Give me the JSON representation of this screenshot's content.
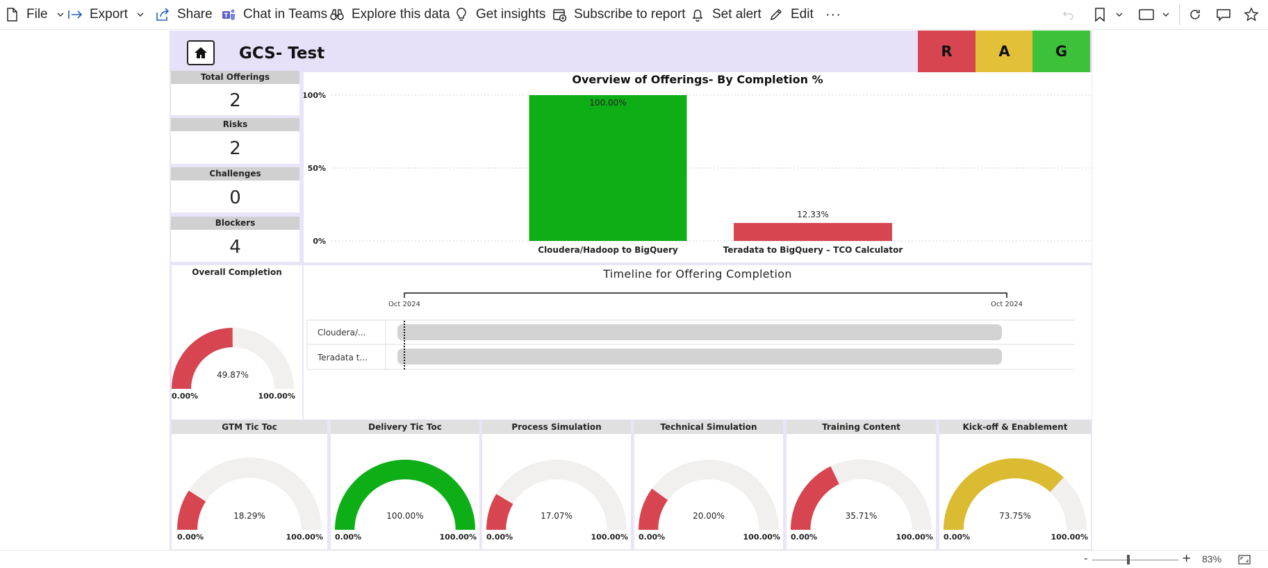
{
  "toolbar": {
    "file": "File",
    "export": "Export",
    "share": "Share",
    "chat": "Chat in Teams",
    "explore": "Explore this data",
    "insights": "Get insights",
    "subscribe": "Subscribe to report",
    "alert": "Set alert",
    "edit": "Edit",
    "more": "···"
  },
  "report": {
    "title": "GCS- Test",
    "rag": [
      "R",
      "A",
      "G"
    ],
    "rag_colors": [
      "#d64550",
      "#e2c038",
      "#3ec13a"
    ]
  },
  "kpis": [
    {
      "label": "Total Offerings",
      "value": "2"
    },
    {
      "label": "Risks",
      "value": "2"
    },
    {
      "label": "Challenges",
      "value": "0"
    },
    {
      "label": "Blockers",
      "value": "4"
    }
  ],
  "chart_data": [
    {
      "type": "bar",
      "title": "Overview of Offerings- By Completion %",
      "categories": [
        "Cloudera/Hadoop to BigQuery",
        "Teradata to BigQuery – TCO Calculator"
      ],
      "values": [
        100.0,
        12.33
      ],
      "data_labels": [
        "100.00%",
        "12.33%"
      ],
      "colors": [
        "#0eae17",
        "#d64550"
      ],
      "yticks": [
        "100%",
        "50%",
        "0%"
      ],
      "ylim": [
        0,
        100
      ],
      "grid": true
    }
  ],
  "timeline": {
    "title": "Timeline for Offering Completion",
    "start_label": "Oct 2024",
    "end_label": "Oct 2024",
    "rows": [
      "Cloudera/...",
      "Teradata t..."
    ]
  },
  "overall": {
    "title": "Overall Completion",
    "value": 49.87,
    "label": "49.87%",
    "min": "0.00%",
    "max": "100.00%",
    "color": "#d64550"
  },
  "gauges": [
    {
      "title": "GTM Tic Toc",
      "value": 18.29,
      "label": "18.29%",
      "min": "0.00%",
      "max": "100.00%",
      "color": "#d64550"
    },
    {
      "title": "Delivery Tic Toc",
      "value": 100.0,
      "label": "100.00%",
      "min": "0.00%",
      "max": "100.00%",
      "color": "#0eae17"
    },
    {
      "title": "Process Simulation",
      "value": 17.07,
      "label": "17.07%",
      "min": "0.00%",
      "max": "100.00%",
      "color": "#d64550"
    },
    {
      "title": "Technical Simulation",
      "value": 20.0,
      "label": "20.00%",
      "min": "0.00%",
      "max": "100.00%",
      "color": "#d64550"
    },
    {
      "title": "Training Content",
      "value": 35.71,
      "label": "35.71%",
      "min": "0.00%",
      "max": "100.00%",
      "color": "#d64550"
    },
    {
      "title": "Kick-off & Enablement",
      "value": 73.75,
      "label": "73.75%",
      "min": "0.00%",
      "max": "100.00%",
      "color": "#dbbb32"
    }
  ],
  "status": {
    "zoom": "83%",
    "minus": "-",
    "plus": "+",
    "zoom_level": 0.42
  }
}
